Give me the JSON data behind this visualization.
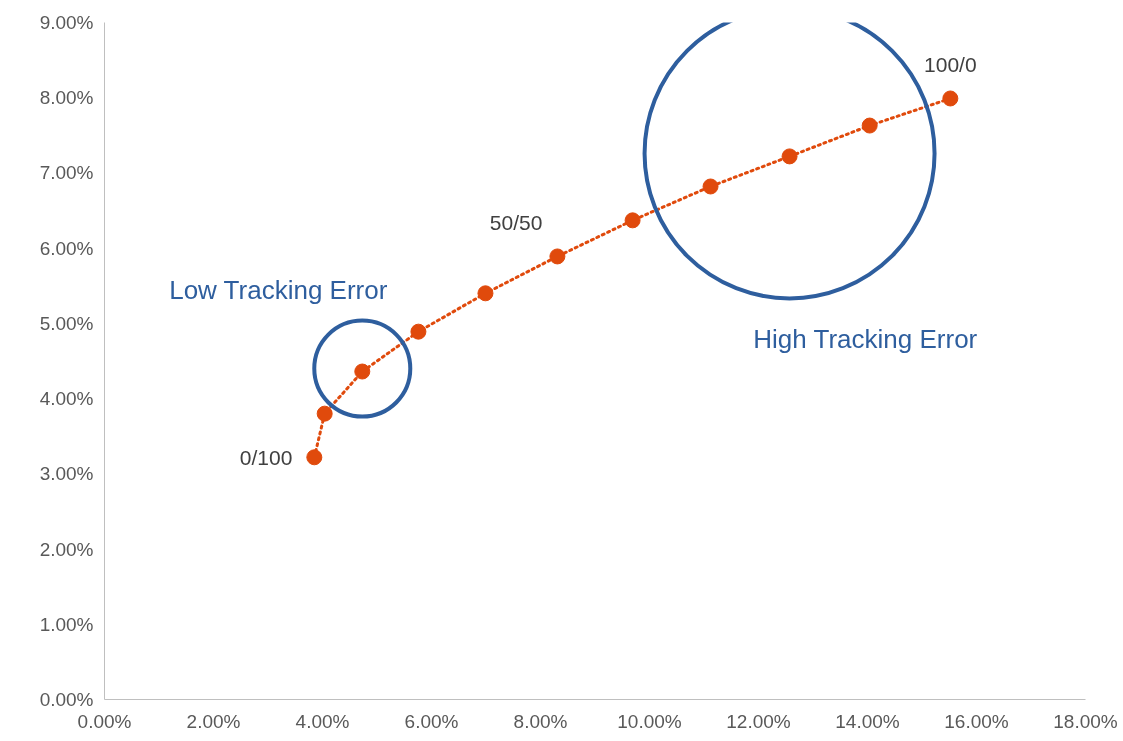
{
  "chart_data": {
    "type": "line",
    "x": [
      3.85,
      4.04,
      4.73,
      5.76,
      6.99,
      8.31,
      9.69,
      11.12,
      12.57,
      14.04,
      15.52
    ],
    "series": [
      {
        "color": "#e04a0c",
        "values": [
          3.22,
          3.8,
          4.36,
          4.89,
          5.4,
          5.89,
          6.37,
          6.82,
          7.22,
          7.63,
          7.99
        ]
      }
    ],
    "marker": "circle",
    "line_style": "dotted",
    "grid": false,
    "xlim": [
      0,
      18
    ],
    "ylim": [
      0,
      9
    ],
    "xticks": [
      {
        "value": 0,
        "label": "0.00%"
      },
      {
        "value": 2,
        "label": "2.00%"
      },
      {
        "value": 4,
        "label": "4.00%"
      },
      {
        "value": 6,
        "label": "6.00%"
      },
      {
        "value": 8,
        "label": "8.00%"
      },
      {
        "value": 10,
        "label": "10.00%"
      },
      {
        "value": 12,
        "label": "12.00%"
      },
      {
        "value": 14,
        "label": "14.00%"
      },
      {
        "value": 16,
        "label": "16.00%"
      },
      {
        "value": 18,
        "label": "18.00%"
      }
    ],
    "yticks": [
      {
        "value": 0,
        "label": "0.00%"
      },
      {
        "value": 1,
        "label": "1.00%"
      },
      {
        "value": 2,
        "label": "2.00%"
      },
      {
        "value": 3,
        "label": "3.00%"
      },
      {
        "value": 4,
        "label": "4.00%"
      },
      {
        "value": 5,
        "label": "5.00%"
      },
      {
        "value": 6,
        "label": "6.00%"
      },
      {
        "value": 7,
        "label": "7.00%"
      },
      {
        "value": 8,
        "label": "8.00%"
      },
      {
        "value": 9,
        "label": "9.00%"
      }
    ],
    "annotations": [
      {
        "text": "0/100",
        "x": 3.85,
        "y": 3.22
      },
      {
        "text": "50/50",
        "x": 8.31,
        "y": 5.89
      },
      {
        "text": "100/0",
        "x": 15.52,
        "y": 7.99
      },
      "Low Tracking Error",
      "High Tracking Error"
    ]
  }
}
